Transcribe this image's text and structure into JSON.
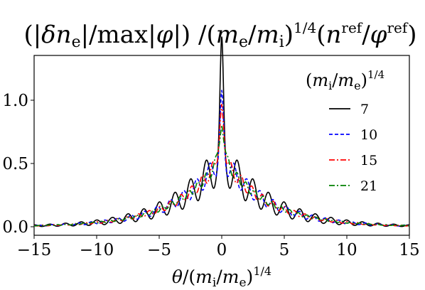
{
  "chart_data": {
    "type": "line",
    "title": "(|δn_e|/max|φ|) /(m_e/m_i)^{1/4}(n^ref/φ^ref)",
    "title_parts": {
      "lead": "(|",
      "delta": "δ",
      "n": "n",
      "sub_e": "e",
      "mid": "|/max|",
      "phi": "φ",
      "mid2": "|) /(",
      "m1": "m",
      "sub_e2": "e",
      "slash": "/",
      "m2": "m",
      "sub_i": "i",
      "close": ")",
      "pow": "1/4",
      "open2": "(",
      "n2": "n",
      "sup_ref": "ref",
      "slash2": "/",
      "phi2": "φ",
      "sup_ref2": "ref",
      "close2": ")"
    },
    "xlabel": "θ/(m_i/m_e)^{1/4}",
    "xlabel_parts": {
      "theta": "θ",
      "slash": "/(",
      "m1": "m",
      "sub_i": "i",
      "slash2": "/",
      "m2": "m",
      "sub_e": "e",
      "close": ")",
      "pow": "1/4"
    },
    "ylabel": "",
    "xlim": [
      -15,
      15
    ],
    "ylim": [
      -0.07,
      1.4
    ],
    "x_ticks": [
      "−15",
      "−10",
      "−5",
      "0",
      "5",
      "10",
      "15"
    ],
    "x_tick_values": [
      -15,
      -10,
      -5,
      0,
      5,
      10,
      15
    ],
    "y_ticks": [
      "0.0",
      "0.5",
      "1.0"
    ],
    "y_tick_values": [
      0.0,
      0.5,
      1.0
    ],
    "grid": false,
    "legend_title": "(m_i/m_e)^{1/4}",
    "legend_title_parts": {
      "open": "(",
      "m1": "m",
      "sub_i": "i",
      "slash": "/",
      "m2": "m",
      "sub_e": "e",
      "close": ")",
      "pow": "1/4"
    },
    "legend_position": "top-right",
    "series": [
      {
        "name": "7",
        "color": "#000000",
        "dash": "solid",
        "peak": 1.32,
        "osc": 0.18,
        "period": 1.25,
        "phase": 0.0,
        "width": 0.13
      },
      {
        "name": "10",
        "color": "#0000ff",
        "dash": "dashed",
        "peak": 0.99,
        "osc": 0.1,
        "period": 1.05,
        "phase": 0.5,
        "width": 0.16
      },
      {
        "name": "15",
        "color": "#ff0000",
        "dash": "dashdot",
        "peak": 0.93,
        "osc": 0.07,
        "period": 0.85,
        "phase": 1.0,
        "width": 0.2
      },
      {
        "name": "21",
        "color": "#008000",
        "dash": "dashdot",
        "peak": 0.8,
        "osc": 0.05,
        "period": 0.7,
        "phase": 1.5,
        "width": 0.24
      }
    ],
    "envelope": {
      "base_amplitude": 0.55,
      "decay": 0.28
    }
  }
}
